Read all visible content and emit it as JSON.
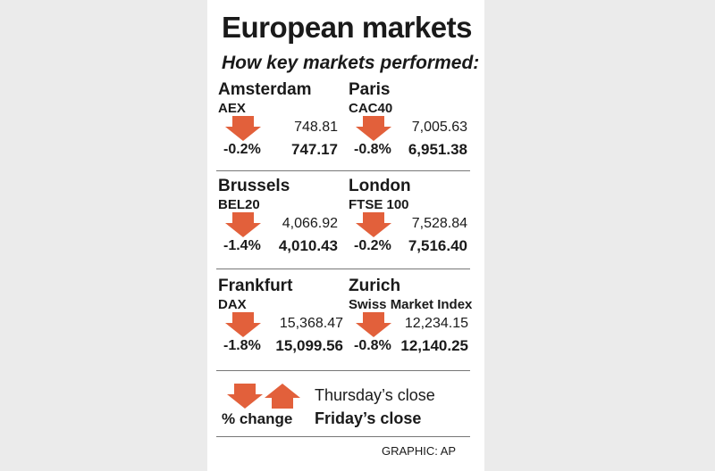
{
  "title": "European markets",
  "subtitle": "How key markets performed:",
  "colors": {
    "arrow": "#e2603b",
    "rule": "#777777"
  },
  "chart_data": {
    "type": "table",
    "columns": [
      "city",
      "index",
      "thursday_close",
      "friday_close",
      "pct_change"
    ],
    "markets": [
      {
        "city": "Amsterdam",
        "index": "AEX",
        "prev": "748.81",
        "close": "747.17",
        "pct": "-0.2%",
        "change": -0.2
      },
      {
        "city": "Paris",
        "index": "CAC40",
        "prev": "7,005.63",
        "close": "6,951.38",
        "pct": "-0.8%",
        "change": -0.8
      },
      {
        "city": "Brussels",
        "index": "BEL20",
        "prev": "4,066.92",
        "close": "4,010.43",
        "pct": "-1.4%",
        "change": -1.4
      },
      {
        "city": "London",
        "index": "FTSE 100",
        "prev": "7,528.84",
        "close": "7,516.40",
        "pct": "-0.2%",
        "change": -0.2
      },
      {
        "city": "Frankfurt",
        "index": "DAX",
        "prev": "15,368.47",
        "close": "15,099.56",
        "pct": "-1.8%",
        "change": -1.8
      },
      {
        "city": "Zurich",
        "index": "Swiss Market Index",
        "prev": "12,234.15",
        "close": "12,140.25",
        "pct": "-0.8%",
        "change": -0.8
      }
    ]
  },
  "legend": {
    "pct_label": "% change",
    "prev_label": "Thursday’s close",
    "close_label": "Friday’s close",
    "icons": [
      "down-arrow-icon",
      "up-arrow-icon"
    ]
  },
  "credit": "GRAPHIC: AP"
}
